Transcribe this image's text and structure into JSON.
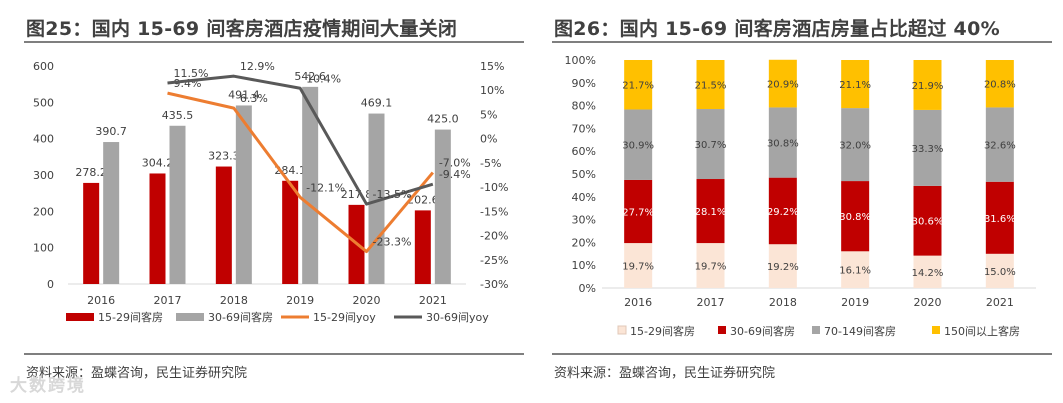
{
  "watermark": "大数跨境",
  "chart_data": [
    {
      "type": "bar",
      "title": "图25：国内 15-69 间客房酒店疫情期间大量关闭",
      "source": "资料来源：盈蝶咨询，民生证券研究院",
      "categories": [
        "2016",
        "2017",
        "2018",
        "2019",
        "2020",
        "2021"
      ],
      "ylim": [
        0,
        600
      ],
      "yticks": [
        "0",
        "100",
        "200",
        "300",
        "400",
        "500",
        "600"
      ],
      "y2lim": [
        -30,
        15
      ],
      "y2ticks": [
        "15%",
        "10%",
        "5%",
        "0%",
        "-5%",
        "-10%",
        "-15%",
        "-20%",
        "-25%",
        "-30%"
      ],
      "series": [
        {
          "name": "15-29间客房",
          "kind": "bar",
          "color": "#c00000",
          "values": [
            278.2,
            304.2,
            323.3,
            284.1,
            217.8,
            202.6
          ],
          "labels": [
            "278.2",
            "304.2",
            "323.3",
            "284.1",
            "217.8",
            "202.6"
          ]
        },
        {
          "name": "30-69间客房",
          "kind": "bar",
          "color": "#a5a5a5",
          "values": [
            390.7,
            435.5,
            491.4,
            542.6,
            469.1,
            425.0
          ],
          "labels": [
            "390.7",
            "435.5",
            "491.4",
            "542.6",
            "469.1",
            "425.0"
          ]
        },
        {
          "name": "15-29间yoy",
          "kind": "line",
          "color": "#ed7d31",
          "values": [
            null,
            9.4,
            6.3,
            -12.1,
            -23.3,
            -7.0
          ],
          "labels": [
            "",
            "9.4%",
            "6.3%",
            "-12.1%",
            "-23.3%",
            "-7.0%"
          ]
        },
        {
          "name": "30-69间yoy",
          "kind": "line",
          "color": "#595959",
          "values": [
            null,
            11.5,
            12.9,
            10.4,
            -13.5,
            -9.4
          ],
          "labels": [
            "",
            "11.5%",
            "12.9%",
            "10.4%",
            "-13.5%",
            "-9.4%"
          ]
        }
      ]
    },
    {
      "type": "bar",
      "stacked": true,
      "title": "图26：国内 15-69 间客房酒店房量占比超过 40%",
      "source": "资料来源：盈蝶咨询，民生证券研究院",
      "categories": [
        "2016",
        "2017",
        "2018",
        "2019",
        "2020",
        "2021"
      ],
      "ylim": [
        0,
        100
      ],
      "yticks": [
        "0%",
        "10%",
        "20%",
        "30%",
        "40%",
        "50%",
        "60%",
        "70%",
        "80%",
        "90%",
        "100%"
      ],
      "series": [
        {
          "name": "15-29间客房",
          "color": "#fbe5d6",
          "labelColor": "#404040",
          "values": [
            19.7,
            19.7,
            19.2,
            16.1,
            14.2,
            15.0
          ],
          "labels": [
            "19.7%",
            "19.7%",
            "19.2%",
            "16.1%",
            "14.2%",
            "15.0%"
          ]
        },
        {
          "name": "30-69间客房",
          "color": "#c00000",
          "labelColor": "#ffffff",
          "values": [
            27.7,
            28.1,
            29.2,
            30.8,
            30.6,
            31.6
          ],
          "labels": [
            "27.7%",
            "28.1%",
            "29.2%",
            "30.8%",
            "30.6%",
            "31.6%"
          ]
        },
        {
          "name": "70-149间客房",
          "color": "#a5a5a5",
          "labelColor": "#404040",
          "values": [
            30.9,
            30.7,
            30.8,
            32.0,
            33.3,
            32.6
          ],
          "labels": [
            "30.9%",
            "30.7%",
            "30.8%",
            "32.0%",
            "33.3%",
            "32.6%"
          ]
        },
        {
          "name": "150间以上客房",
          "color": "#ffc000",
          "labelColor": "#404040",
          "values": [
            21.7,
            21.5,
            20.9,
            21.1,
            21.9,
            20.8
          ],
          "labels": [
            "21.7%",
            "21.5%",
            "20.9%",
            "21.1%",
            "21.9%",
            "20.8%"
          ]
        }
      ]
    }
  ]
}
